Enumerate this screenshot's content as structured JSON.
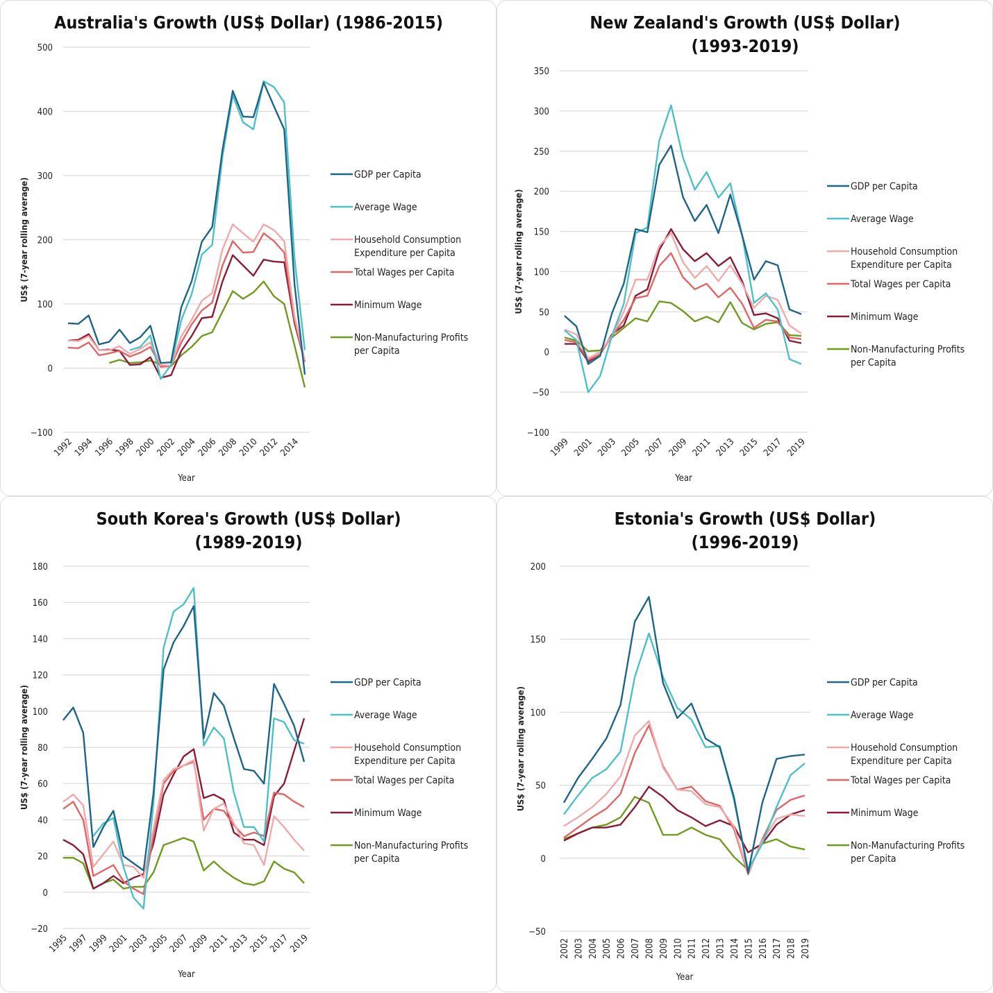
{
  "legend_labels": [
    "GDP per Capita",
    "Average Wage",
    [
      "Household Consumption",
      "Expenditure per Capita"
    ],
    "Total Wages per Capita",
    "Minimum Wage",
    [
      "Non-Manufacturing Profits",
      "per Capita"
    ]
  ],
  "series_colors": {
    "gdp": "#1c6488",
    "avg_wage": "#4cc0c8",
    "household": "#f0a8a8",
    "total_wages": "#e06565",
    "min_wage": "#8a1a35",
    "non_manu": "#6e9a1e"
  },
  "chart_data": [
    {
      "type": "line",
      "title": [
        "Australia's Growth (US$ Dollar) (1986-2015)"
      ],
      "xlabel": "Year",
      "ylabel": "US$ (7-year rolling average)",
      "ylim": [
        -100,
        500
      ],
      "yticks": [
        -100,
        0,
        100,
        200,
        300,
        400,
        500
      ],
      "x": [
        1992,
        1993,
        1994,
        1995,
        1996,
        1997,
        1998,
        1999,
        2000,
        2001,
        2002,
        2003,
        2004,
        2005,
        2006,
        2007,
        2008,
        2009,
        2010,
        2011,
        2012,
        2013,
        2014,
        2015
      ],
      "xtick_labels": [
        "1992",
        "1994",
        "1996",
        "1998",
        "2000",
        "2002",
        "2004",
        "2006",
        "2008",
        "2010",
        "2012",
        "2014"
      ],
      "xtick_style": "diagonal",
      "grid": true,
      "legend": "right",
      "series": [
        {
          "key": "gdp",
          "name": "GDP per Capita",
          "values": [
            70,
            69,
            82,
            37,
            41,
            60,
            39,
            48,
            66,
            8,
            9,
            95,
            135,
            197,
            220,
            340,
            432,
            392,
            391,
            445,
            408,
            372,
            130,
            -10
          ]
        },
        {
          "key": "avg_wage",
          "name": "Average Wage",
          "values": [
            null,
            null,
            null,
            null,
            null,
            null,
            28,
            33,
            51,
            -17,
            5,
            75,
            115,
            177,
            192,
            330,
            425,
            383,
            372,
            447,
            438,
            414,
            170,
            28
          ]
        },
        {
          "key": "household",
          "name": "Household Consumption Expenditure per Capita",
          "values": [
            43,
            42,
            50,
            28,
            28,
            34,
            22,
            30,
            40,
            5,
            4,
            50,
            75,
            105,
            117,
            185,
            224,
            210,
            197,
            224,
            215,
            198,
            80,
            12
          ]
        },
        {
          "key": "total_wages",
          "name": "Total Wages per Capita",
          "values": [
            32,
            31,
            40,
            20,
            23,
            27,
            18,
            24,
            33,
            2,
            3,
            40,
            68,
            90,
            102,
            160,
            198,
            180,
            181,
            210,
            198,
            180,
            75,
            10
          ]
        },
        {
          "key": "min_wage",
          "name": "Minimum Wage",
          "values": [
            43,
            44,
            53,
            28,
            29,
            27,
            5,
            6,
            17,
            -15,
            -11,
            27,
            50,
            78,
            80,
            135,
            176,
            160,
            144,
            169,
            166,
            165,
            70,
            10
          ]
        },
        {
          "key": "non_manu",
          "name": "Non-Manufacturing Profits per Capita",
          "values": [
            null,
            null,
            null,
            null,
            8,
            13,
            8,
            9,
            12,
            5,
            3,
            20,
            33,
            50,
            56,
            88,
            120,
            108,
            118,
            135,
            112,
            100,
            35,
            -30
          ]
        }
      ]
    },
    {
      "type": "line",
      "title": [
        "New Zealand's Growth (US$ Dollar)",
        "(1993-2019)"
      ],
      "xlabel": "Year",
      "ylabel": "US$ (7-year rolling average)",
      "ylim": [
        -100,
        350
      ],
      "yticks": [
        -100,
        -50,
        0,
        50,
        100,
        150,
        200,
        250,
        300,
        350
      ],
      "x": [
        1999,
        2000,
        2001,
        2002,
        2003,
        2004,
        2005,
        2006,
        2007,
        2008,
        2009,
        2010,
        2011,
        2012,
        2013,
        2014,
        2015,
        2016,
        2017,
        2018,
        2019
      ],
      "xtick_labels": [
        "1999",
        "2001",
        "2003",
        "2005",
        "2007",
        "2009",
        "2011",
        "2013",
        "2015",
        "2017",
        "2019"
      ],
      "xtick_style": "diagonal",
      "grid": true,
      "legend": "right",
      "series": [
        {
          "key": "gdp",
          "name": "GDP per Capita",
          "values": [
            45,
            32,
            -15,
            -5,
            48,
            85,
            153,
            149,
            233,
            257,
            193,
            163,
            183,
            148,
            196,
            145,
            90,
            113,
            108,
            53,
            47
          ]
        },
        {
          "key": "avg_wage",
          "name": "Average Wage",
          "values": [
            27,
            15,
            -50,
            -30,
            20,
            60,
            148,
            155,
            263,
            307,
            242,
            202,
            224,
            192,
            210,
            145,
            61,
            73,
            53,
            -9,
            -15
          ]
        },
        {
          "key": "household",
          "name": "Household Consumption Expenditure per Capita",
          "values": [
            28,
            22,
            -8,
            0,
            20,
            50,
            90,
            90,
            132,
            148,
            112,
            92,
            107,
            88,
            108,
            85,
            55,
            70,
            65,
            33,
            23
          ]
        },
        {
          "key": "total_wages",
          "name": "Total Wages per Capita",
          "values": [
            15,
            12,
            -10,
            -3,
            20,
            40,
            67,
            70,
            107,
            123,
            93,
            78,
            85,
            68,
            80,
            60,
            30,
            40,
            38,
            18,
            16
          ]
        },
        {
          "key": "min_wage",
          "name": "Minimum Wage",
          "values": [
            10,
            10,
            -12,
            -3,
            22,
            33,
            70,
            78,
            127,
            153,
            128,
            113,
            123,
            107,
            118,
            88,
            46,
            48,
            42,
            14,
            11
          ]
        },
        {
          "key": "non_manu",
          "name": "Non-Manufacturing Profits per Capita",
          "values": [
            18,
            14,
            1,
            2,
            18,
            30,
            42,
            38,
            63,
            61,
            51,
            38,
            44,
            37,
            62,
            36,
            28,
            35,
            37,
            21,
            20
          ]
        }
      ]
    },
    {
      "type": "line",
      "title": [
        "South Korea's Growth (US$ Dollar)",
        "(1989-2019)"
      ],
      "xlabel": "Year",
      "ylabel": "US$ (7-year rolling average)",
      "ylim": [
        -20,
        180
      ],
      "yticks": [
        -20,
        0,
        20,
        40,
        60,
        80,
        100,
        120,
        140,
        160,
        180
      ],
      "x": [
        1995,
        1996,
        1997,
        1998,
        1999,
        2000,
        2001,
        2002,
        2003,
        2004,
        2005,
        2006,
        2007,
        2008,
        2009,
        2010,
        2011,
        2012,
        2013,
        2014,
        2015,
        2016,
        2017,
        2018,
        2019
      ],
      "xtick_labels": [
        "1995",
        "1997",
        "1999",
        "2001",
        "2003",
        "2005",
        "2007",
        "2009",
        "2011",
        "2013",
        "2015",
        "2017",
        "2019"
      ],
      "xtick_style": "diagonal",
      "grid": true,
      "legend": "right",
      "series": [
        {
          "key": "gdp",
          "name": "GDP per Capita",
          "values": [
            95,
            102,
            88,
            25,
            36,
            45,
            20,
            16,
            12,
            55,
            123,
            138,
            147,
            158,
            85,
            110,
            103,
            85,
            68,
            67,
            60,
            115,
            104,
            92,
            72
          ]
        },
        {
          "key": "avg_wage",
          "name": "Average Wage",
          "values": [
            null,
            null,
            null,
            31,
            38,
            41,
            14,
            -3,
            -9,
            50,
            135,
            155,
            159,
            168,
            81,
            91,
            85,
            55,
            36,
            36,
            28,
            96,
            94,
            84,
            82
          ]
        },
        {
          "key": "household",
          "name": "Household Consumption Expenditure per Capita",
          "values": [
            50,
            54,
            48,
            14,
            21,
            28,
            15,
            14,
            8,
            35,
            62,
            68,
            70,
            73,
            34,
            46,
            49,
            38,
            27,
            26,
            15,
            42,
            36,
            29,
            23
          ]
        },
        {
          "key": "total_wages",
          "name": "Total Wages per Capita",
          "values": [
            46,
            50,
            40,
            9,
            12,
            15,
            6,
            2,
            -1,
            32,
            60,
            67,
            70,
            72,
            40,
            46,
            45,
            37,
            31,
            33,
            31,
            55,
            54,
            50,
            47
          ]
        },
        {
          "key": "min_wage",
          "name": "Minimum Wage",
          "values": [
            29,
            26,
            21,
            2,
            5,
            9,
            5,
            8,
            10,
            27,
            54,
            65,
            75,
            79,
            52,
            54,
            51,
            33,
            29,
            29,
            26,
            53,
            60,
            78,
            96
          ]
        },
        {
          "key": "non_manu",
          "name": "Non-Manufacturing Profits per Capita",
          "values": [
            19,
            19,
            16,
            2,
            5,
            7,
            2,
            3,
            3,
            11,
            26,
            28,
            30,
            28,
            12,
            17,
            12,
            8,
            5,
            4,
            6,
            17,
            13,
            11,
            5
          ]
        }
      ]
    },
    {
      "type": "line",
      "title": [
        "Estonia's Growth (US$ Dollar)",
        "(1996-2019)"
      ],
      "xlabel": "Year",
      "ylabel": "US$ (7-year rolling average)",
      "ylim": [
        -50,
        200
      ],
      "yticks": [
        -50,
        0,
        50,
        100,
        150,
        200
      ],
      "x": [
        2002,
        2003,
        2004,
        2005,
        2006,
        2007,
        2008,
        2009,
        2010,
        2011,
        2012,
        2013,
        2014,
        2015,
        2016,
        2017,
        2018,
        2019
      ],
      "xtick_labels": [
        "2002",
        "2003",
        "2004",
        "2005",
        "2006",
        "2007",
        "2008",
        "2009",
        "2010",
        "2011",
        "2012",
        "2013",
        "2014",
        "2015",
        "2016",
        "2017",
        "2018",
        "2019"
      ],
      "xtick_style": "vertical",
      "grid": true,
      "legend": "right",
      "series": [
        {
          "key": "gdp",
          "name": "GDP per Capita",
          "values": [
            38,
            55,
            68,
            82,
            105,
            162,
            179,
            120,
            96,
            106,
            82,
            76,
            42,
            -10,
            38,
            68,
            70,
            71
          ]
        },
        {
          "key": "avg_wage",
          "name": "Average Wage",
          "values": [
            30,
            43,
            55,
            61,
            73,
            124,
            154,
            124,
            103,
            95,
            76,
            77,
            40,
            -8,
            10,
            35,
            57,
            65
          ]
        },
        {
          "key": "household",
          "name": "Household Consumption Expenditure per Capita",
          "values": [
            22,
            28,
            35,
            44,
            56,
            84,
            94,
            62,
            47,
            46,
            37,
            35,
            22,
            -10,
            12,
            27,
            30,
            29
          ]
        },
        {
          "key": "total_wages",
          "name": "Total Wages per Capita",
          "values": [
            14,
            21,
            28,
            34,
            44,
            72,
            91,
            63,
            47,
            49,
            39,
            36,
            20,
            -11,
            13,
            33,
            40,
            43
          ]
        },
        {
          "key": "min_wage",
          "name": "Minimum Wage",
          "values": [
            12,
            17,
            21,
            21,
            23,
            35,
            49,
            42,
            33,
            28,
            22,
            26,
            22,
            4,
            10,
            23,
            30,
            33
          ]
        },
        {
          "key": "non_manu",
          "name": "Non-Manufacturing Profits per Capita",
          "values": [
            13,
            17,
            21,
            23,
            28,
            42,
            38,
            16,
            16,
            21,
            16,
            13,
            1,
            -8,
            10,
            13,
            8,
            6
          ]
        }
      ]
    }
  ]
}
